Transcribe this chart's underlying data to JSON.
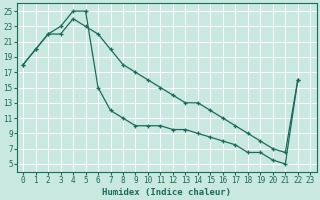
{
  "xlabel": "Humidex (Indice chaleur)",
  "ylabel": "",
  "xlim": [
    -0.5,
    23.5
  ],
  "ylim": [
    4,
    26
  ],
  "yticks": [
    5,
    7,
    9,
    11,
    13,
    15,
    17,
    19,
    21,
    23,
    25
  ],
  "xticks": [
    0,
    1,
    2,
    3,
    4,
    5,
    6,
    7,
    8,
    9,
    10,
    11,
    12,
    13,
    14,
    15,
    16,
    17,
    18,
    19,
    20,
    21,
    22,
    23
  ],
  "bg_color": "#c8e8e0",
  "grid_color": "#ffffff",
  "line_color": "#1a6b5a",
  "line1_x": [
    0,
    1,
    2,
    3,
    4,
    5,
    6,
    7,
    8,
    9,
    10,
    11,
    12,
    13,
    14,
    15,
    16,
    17,
    18,
    19,
    20,
    21,
    22
  ],
  "line1_y": [
    18,
    20,
    22,
    23,
    25,
    25,
    15,
    12,
    11,
    10,
    10,
    10,
    9.5,
    9.5,
    9,
    8.5,
    8,
    7.5,
    6.5,
    6.5,
    5.5,
    5,
    16
  ],
  "line2_x": [
    0,
    1,
    2,
    3,
    4,
    5,
    6,
    7,
    8,
    9,
    10,
    11,
    12,
    13,
    14,
    15,
    16,
    17,
    18,
    19,
    20,
    21,
    22
  ],
  "line2_y": [
    18,
    20,
    22,
    22,
    24,
    23,
    22,
    20,
    18,
    17,
    16,
    15,
    14,
    13,
    13,
    12,
    11,
    10,
    9,
    8,
    7,
    6.5,
    16
  ],
  "marker": "+",
  "markersize": 3,
  "linewidth": 0.9
}
